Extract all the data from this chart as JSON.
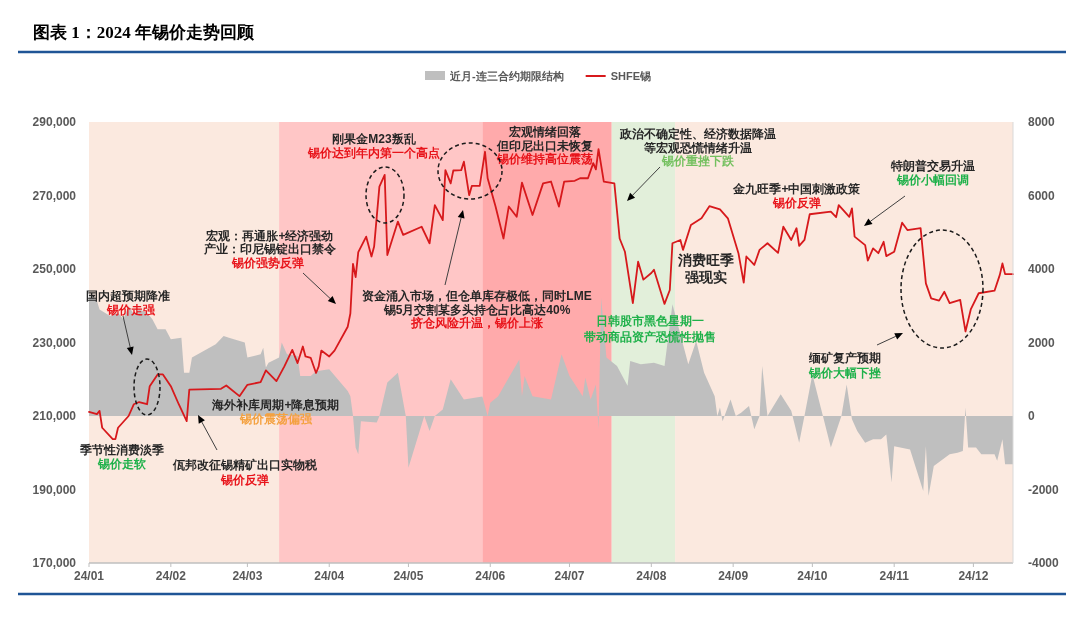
{
  "chart_data": {
    "type": "line",
    "title": "图表 1：2024 年锡价走势回顾",
    "legend": "top",
    "xlim": [
      "2024-01-01",
      "2024-12-16"
    ],
    "xticks": [
      {
        "value": "2024-01-01",
        "label": "24/01"
      },
      {
        "value": "2024-02-01",
        "label": "24/02"
      },
      {
        "value": "2024-03-01",
        "label": "24/03"
      },
      {
        "value": "2024-04-01",
        "label": "24/04"
      },
      {
        "value": "2024-05-01",
        "label": "24/05"
      },
      {
        "value": "2024-06-01",
        "label": "24/06"
      },
      {
        "value": "2024-07-01",
        "label": "24/07"
      },
      {
        "value": "2024-08-01",
        "label": "24/08"
      },
      {
        "value": "2024-09-01",
        "label": "24/09"
      },
      {
        "value": "2024-10-01",
        "label": "24/10"
      },
      {
        "value": "2024-11-01",
        "label": "24/11"
      },
      {
        "value": "2024-12-01",
        "label": "24/12"
      }
    ],
    "ylim": [
      170000,
      290000
    ],
    "yticks": [
      {
        "value": 170000,
        "label": "170,000"
      },
      {
        "value": 190000,
        "label": "190,000"
      },
      {
        "value": 210000,
        "label": "210,000"
      },
      {
        "value": 230000,
        "label": "230,000"
      },
      {
        "value": 250000,
        "label": "250,000"
      },
      {
        "value": 270000,
        "label": "270,000"
      },
      {
        "value": 290000,
        "label": "290,000"
      }
    ],
    "y2lim": [
      -4000,
      8000
    ],
    "y2ticks": [
      -4000,
      -2000,
      0,
      2000,
      4000,
      6000,
      8000
    ],
    "bands": [
      {
        "axis": "x",
        "from": "2024-01-01",
        "to": "2024-03-13",
        "color": "#fbe9df"
      },
      {
        "axis": "x",
        "from": "2024-03-13",
        "to": "2024-05-29",
        "color": "#ffc6c6"
      },
      {
        "axis": "x",
        "from": "2024-05-29",
        "to": "2024-07-17",
        "color": "#ffaaab"
      },
      {
        "axis": "x",
        "from": "2024-07-17",
        "to": "2024-08-10",
        "color": "#e2efda"
      },
      {
        "axis": "x",
        "from": "2024-08-10",
        "to": "2024-12-16",
        "color": "#fbe9df"
      }
    ],
    "series": [
      {
        "name": "近月-连三合约期限结构",
        "type": "area",
        "axis": "y2",
        "color": "#bfbfbf",
        "x": [
          "2024-01-01",
          "2024-01-04",
          "2024-01-05",
          "2024-01-09",
          "2024-01-12",
          "2024-01-14",
          "2024-01-16",
          "2024-01-18",
          "2024-01-20",
          "2024-01-23",
          "2024-01-25",
          "2024-01-27",
          "2024-01-30",
          "2024-02-01",
          "2024-02-05",
          "2024-02-06",
          "2024-02-08",
          "2024-02-09",
          "2024-02-18",
          "2024-02-21",
          "2024-02-23",
          "2024-02-29",
          "2024-03-01",
          "2024-03-06",
          "2024-03-07",
          "2024-03-08",
          "2024-03-09",
          "2024-03-13",
          "2024-03-14",
          "2024-03-16",
          "2024-03-20",
          "2024-03-21",
          "2024-03-25",
          "2024-03-27",
          "2024-04-01",
          "2024-04-08",
          "2024-04-09",
          "2024-04-10",
          "2024-04-11",
          "2024-04-12",
          "2024-04-13",
          "2024-04-19",
          "2024-04-20",
          "2024-04-23",
          "2024-04-27",
          "2024-04-30",
          "2024-05-01",
          "2024-05-07",
          "2024-05-09",
          "2024-05-11",
          "2024-05-14",
          "2024-05-17",
          "2024-05-22",
          "2024-05-29",
          "2024-05-31",
          "2024-06-01",
          "2024-06-04",
          "2024-06-12",
          "2024-06-13",
          "2024-06-14",
          "2024-06-17",
          "2024-06-24",
          "2024-06-28",
          "2024-07-01",
          "2024-07-06",
          "2024-07-07",
          "2024-07-09",
          "2024-07-11",
          "2024-07-12",
          "2024-07-13",
          "2024-07-15",
          "2024-07-19",
          "2024-07-23",
          "2024-07-24",
          "2024-07-28",
          "2024-08-02",
          "2024-08-06",
          "2024-08-09",
          "2024-08-15",
          "2024-08-18",
          "2024-08-21",
          "2024-08-25",
          "2024-08-26",
          "2024-08-27",
          "2024-08-28",
          "2024-08-31",
          "2024-09-02",
          "2024-09-04",
          "2024-09-07",
          "2024-09-09",
          "2024-09-11",
          "2024-09-12",
          "2024-09-14",
          "2024-09-19",
          "2024-09-23",
          "2024-09-26",
          "2024-09-28",
          "2024-10-01",
          "2024-10-05",
          "2024-10-08",
          "2024-10-12",
          "2024-10-14",
          "2024-10-16",
          "2024-10-18",
          "2024-10-21",
          "2024-10-24",
          "2024-10-27",
          "2024-10-29",
          "2024-10-31",
          "2024-11-01",
          "2024-11-07",
          "2024-11-12",
          "2024-11-13",
          "2024-11-14",
          "2024-11-16",
          "2024-11-22",
          "2024-11-25",
          "2024-11-27",
          "2024-11-28",
          "2024-11-29",
          "2024-12-02",
          "2024-12-04",
          "2024-12-09",
          "2024-12-10",
          "2024-12-12",
          "2024-12-13",
          "2024-12-16"
        ],
        "values": [
          3310,
          3130,
          2900,
          2720,
          2810,
          2630,
          2990,
          2770,
          2900,
          2810,
          2630,
          2360,
          2360,
          2090,
          2130,
          1180,
          1180,
          1590,
          1950,
          2180,
          2130,
          2000,
          1590,
          1680,
          1860,
          1320,
          1450,
          1590,
          2000,
          1680,
          1630,
          1090,
          1090,
          1220,
          1270,
          680,
          540,
          0,
          -860,
          -1040,
          -140,
          -180,
          0,
          910,
          1180,
          0,
          -1410,
          0,
          -410,
          0,
          180,
          1000,
          450,
          530,
          0,
          360,
          540,
          1540,
          540,
          1090,
          540,
          450,
          1680,
          1090,
          540,
          1040,
          450,
          860,
          -360,
          3220,
          1590,
          1360,
          820,
          1500,
          1410,
          1450,
          1360,
          3040,
          1410,
          2040,
          1180,
          540,
          0,
          230,
          -140,
          450,
          0,
          90,
          270,
          -360,
          0,
          1360,
          0,
          590,
          140,
          -730,
          0,
          1130,
          0,
          -860,
          0,
          860,
          -90,
          -410,
          -730,
          -630,
          -630,
          -500,
          -1810,
          -820,
          -910,
          -2040,
          -820,
          -2180,
          -1360,
          -1040,
          -1000,
          -950,
          230,
          -860,
          -860,
          -1040,
          -1040,
          -1220,
          -630,
          -1310,
          -1310
        ]
      },
      {
        "name": "SHFE锡",
        "type": "line",
        "color": "#d7191c",
        "x": [
          "2024-01-01",
          "2024-01-04",
          "2024-01-05",
          "2024-01-06",
          "2024-01-10",
          "2024-01-11",
          "2024-01-12",
          "2024-01-16",
          "2024-01-18",
          "2024-01-20",
          "2024-01-23",
          "2024-01-24",
          "2024-01-27",
          "2024-01-29",
          "2024-02-01",
          "2024-02-04",
          "2024-02-07",
          "2024-02-08",
          "2024-02-20",
          "2024-02-22",
          "2024-02-27",
          "2024-03-01",
          "2024-03-06",
          "2024-03-08",
          "2024-03-12",
          "2024-03-15",
          "2024-03-18",
          "2024-03-20",
          "2024-03-22",
          "2024-03-23",
          "2024-03-25",
          "2024-03-27",
          "2024-03-28",
          "2024-03-29",
          "2024-04-01",
          "2024-04-03",
          "2024-04-08",
          "2024-04-09",
          "2024-04-10",
          "2024-04-11",
          "2024-04-12",
          "2024-04-15",
          "2024-04-17",
          "2024-04-18",
          "2024-04-20",
          "2024-04-22",
          "2024-04-23",
          "2024-04-27",
          "2024-04-29",
          "2024-05-06",
          "2024-05-09",
          "2024-05-11",
          "2024-05-14",
          "2024-05-15",
          "2024-05-17",
          "2024-05-18",
          "2024-05-21",
          "2024-05-22",
          "2024-05-24",
          "2024-05-25",
          "2024-05-28",
          "2024-05-30",
          "2024-05-31",
          "2024-06-03",
          "2024-06-06",
          "2024-06-08",
          "2024-06-11",
          "2024-06-13",
          "2024-06-17",
          "2024-06-21",
          "2024-06-24",
          "2024-06-27",
          "2024-06-29",
          "2024-07-03",
          "2024-07-05",
          "2024-07-08",
          "2024-07-10",
          "2024-07-11",
          "2024-07-12",
          "2024-07-14",
          "2024-07-18",
          "2024-07-20",
          "2024-07-22",
          "2024-07-25",
          "2024-07-27",
          "2024-07-29",
          "2024-08-01",
          "2024-08-02",
          "2024-08-06",
          "2024-08-08",
          "2024-08-09",
          "2024-08-12",
          "2024-08-13",
          "2024-08-16",
          "2024-08-20",
          "2024-08-23",
          "2024-08-27",
          "2024-08-30",
          "2024-09-03",
          "2024-09-05",
          "2024-09-06",
          "2024-09-09",
          "2024-09-11",
          "2024-09-14",
          "2024-09-18",
          "2024-09-20",
          "2024-09-23",
          "2024-09-25",
          "2024-09-26",
          "2024-09-28",
          "2024-09-30",
          "2024-10-08",
          "2024-10-10",
          "2024-10-11",
          "2024-10-15",
          "2024-10-16",
          "2024-10-17",
          "2024-10-21",
          "2024-10-22",
          "2024-10-24",
          "2024-10-26",
          "2024-10-28",
          "2024-10-29",
          "2024-11-01",
          "2024-11-04",
          "2024-11-06",
          "2024-11-11",
          "2024-11-13",
          "2024-11-15",
          "2024-11-18",
          "2024-11-20",
          "2024-11-22",
          "2024-11-26",
          "2024-11-28",
          "2024-11-30",
          "2024-12-03",
          "2024-12-09",
          "2024-12-11",
          "2024-12-12",
          "2024-12-13",
          "2024-12-16"
        ],
        "values": [
          211100,
          210500,
          211400,
          206800,
          203700,
          203700,
          206800,
          210000,
          213200,
          213800,
          213200,
          218100,
          221300,
          221300,
          218100,
          213200,
          208600,
          217200,
          217400,
          218300,
          215400,
          218500,
          219200,
          222400,
          219500,
          223500,
          228000,
          224400,
          228900,
          226200,
          225800,
          221700,
          223500,
          227800,
          226200,
          227800,
          234300,
          237900,
          251400,
          247800,
          254600,
          258800,
          253400,
          256100,
          272400,
          275600,
          253800,
          262900,
          259300,
          261500,
          257000,
          267400,
          263300,
          276900,
          273300,
          276800,
          276900,
          279200,
          270100,
          272600,
          272600,
          281900,
          274700,
          267000,
          258300,
          267000,
          264200,
          273500,
          264700,
          273300,
          273800,
          267000,
          273800,
          274000,
          274700,
          274700,
          278800,
          277100,
          282600,
          273800,
          273300,
          258300,
          254700,
          240700,
          252000,
          247100,
          248900,
          249800,
          240500,
          244300,
          257000,
          257900,
          255200,
          262000,
          263800,
          267100,
          266200,
          263800,
          254300,
          246300,
          253400,
          251100,
          255200,
          257000,
          254400,
          261500,
          257900,
          261100,
          256300,
          257900,
          264900,
          265600,
          264100,
          267400,
          264200,
          266500,
          258800,
          256500,
          252300,
          255600,
          254300,
          257400,
          253500,
          254700,
          262600,
          260600,
          261100,
          246100,
          242000,
          241400,
          243800,
          240700,
          241600,
          233000,
          239000,
          243400,
          244100,
          248400,
          251500,
          248600,
          248600
        ]
      }
    ],
    "annotations": [
      "国内超预期降准",
      "锡价走强",
      "宏观：再通胀+经济强劲",
      "产业：印尼锡锭出口禁令",
      "锡价强势反弹",
      "刚果金M23叛乱",
      "锡价达到年内第一个高点",
      "宏观情绪回落",
      "但印尼出口未恢复",
      "锡价维持高位震荡",
      "资金涌入市场，但仓单库存极低，同时LME",
      "锡5月交割某多头持仓占比高达40%",
      "挤仓风险升温，锡价上涨",
      "政治不确定性、经济数据降温",
      "等宏观恐慌情绪升温",
      "锡价重挫下跌",
      "日韩股市黑色星期一",
      "带动商品资产恐慌性抛售",
      "消费旺季",
      "强现实",
      "金九旺季+中国刺激政策",
      "锡价反弹",
      "特朗普交易升温",
      "锡价小幅回调",
      "缅矿复产预期",
      "锡价大幅下挫",
      "海外补库周期+降息预期",
      "锡价震荡偏强",
      "季节性消费淡季",
      "锡价走软",
      "佤邦改征锡精矿出口实物税",
      "锡价反弹"
    ]
  }
}
